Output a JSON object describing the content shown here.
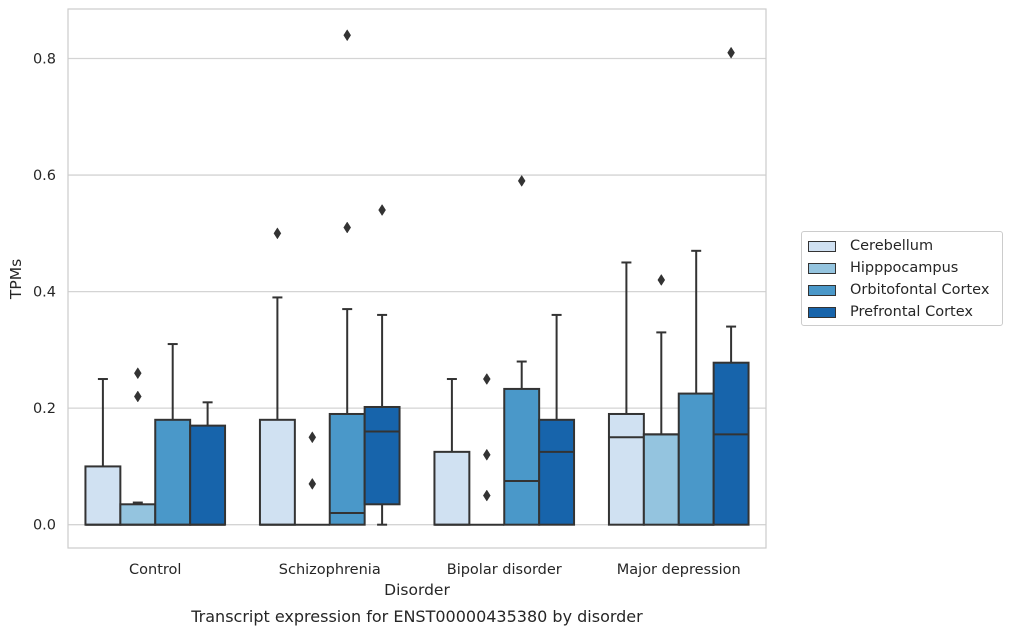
{
  "chart_data": {
    "type": "box",
    "title": "",
    "caption": "Transcript expression for ENST00000435380 by disorder",
    "xlabel": "Disorder",
    "ylabel": "TPMs",
    "ylim": [
      -0.04,
      0.885
    ],
    "yticks": [
      "0.0",
      "0.2",
      "0.4",
      "0.6",
      "0.8"
    ],
    "grid": "horizontal",
    "legend_position": "right",
    "categories": [
      "Control",
      "Schizophrenia",
      "Bipolar disorder",
      "Major depression"
    ],
    "series": [
      {
        "name": "Cerebellum",
        "color": "#d0e1f2",
        "boxes": [
          {
            "q1": 0.0,
            "median": 0.0,
            "q3": 0.1,
            "whisker_low": 0.0,
            "whisker_high": 0.25,
            "outliers": []
          },
          {
            "q1": 0.0,
            "median": 0.0,
            "q3": 0.18,
            "whisker_low": 0.0,
            "whisker_high": 0.39,
            "outliers": [
              0.5
            ]
          },
          {
            "q1": 0.0,
            "median": 0.0,
            "q3": 0.125,
            "whisker_low": 0.0,
            "whisker_high": 0.25,
            "outliers": []
          },
          {
            "q1": 0.0,
            "median": 0.15,
            "q3": 0.19,
            "whisker_low": 0.0,
            "whisker_high": 0.45,
            "outliers": []
          }
        ]
      },
      {
        "name": "Hipppocampus",
        "color": "#94c4df",
        "boxes": [
          {
            "q1": 0.0,
            "median": 0.0,
            "q3": 0.035,
            "whisker_low": 0.0,
            "whisker_high": 0.038,
            "outliers": [
              0.22,
              0.26
            ]
          },
          {
            "q1": 0.0,
            "median": 0.0,
            "q3": 0.0,
            "whisker_low": 0.0,
            "whisker_high": 0.0,
            "outliers": [
              0.07,
              0.15
            ]
          },
          {
            "q1": 0.0,
            "median": 0.0,
            "q3": 0.0,
            "whisker_low": 0.0,
            "whisker_high": 0.0,
            "outliers": [
              0.05,
              0.12,
              0.25
            ]
          },
          {
            "q1": 0.0,
            "median": 0.155,
            "q3": 0.155,
            "whisker_low": 0.0,
            "whisker_high": 0.33,
            "outliers": [
              0.42
            ]
          }
        ]
      },
      {
        "name": "Orbitofontal Cortex",
        "color": "#4a98c9",
        "boxes": [
          {
            "q1": 0.0,
            "median": 0.0,
            "q3": 0.18,
            "whisker_low": 0.0,
            "whisker_high": 0.31,
            "outliers": []
          },
          {
            "q1": 0.0,
            "median": 0.02,
            "q3": 0.19,
            "whisker_low": 0.0,
            "whisker_high": 0.37,
            "outliers": [
              0.51,
              0.84
            ]
          },
          {
            "q1": 0.0,
            "median": 0.075,
            "q3": 0.233,
            "whisker_low": 0.0,
            "whisker_high": 0.28,
            "outliers": [
              0.59
            ]
          },
          {
            "q1": 0.0,
            "median": 0.0,
            "q3": 0.225,
            "whisker_low": 0.0,
            "whisker_high": 0.47,
            "outliers": []
          }
        ]
      },
      {
        "name": "Prefrontal Cortex",
        "color": "#1764ab",
        "boxes": [
          {
            "q1": 0.0,
            "median": 0.0,
            "q3": 0.17,
            "whisker_low": 0.0,
            "whisker_high": 0.21,
            "outliers": []
          },
          {
            "q1": 0.035,
            "median": 0.16,
            "q3": 0.202,
            "whisker_low": 0.0,
            "whisker_high": 0.36,
            "outliers": [
              0.54
            ]
          },
          {
            "q1": 0.0,
            "median": 0.125,
            "q3": 0.18,
            "whisker_low": 0.0,
            "whisker_high": 0.36,
            "outliers": []
          },
          {
            "q1": 0.0,
            "median": 0.155,
            "q3": 0.278,
            "whisker_low": 0.0,
            "whisker_high": 0.34,
            "outliers": [
              0.81
            ]
          }
        ]
      }
    ]
  }
}
